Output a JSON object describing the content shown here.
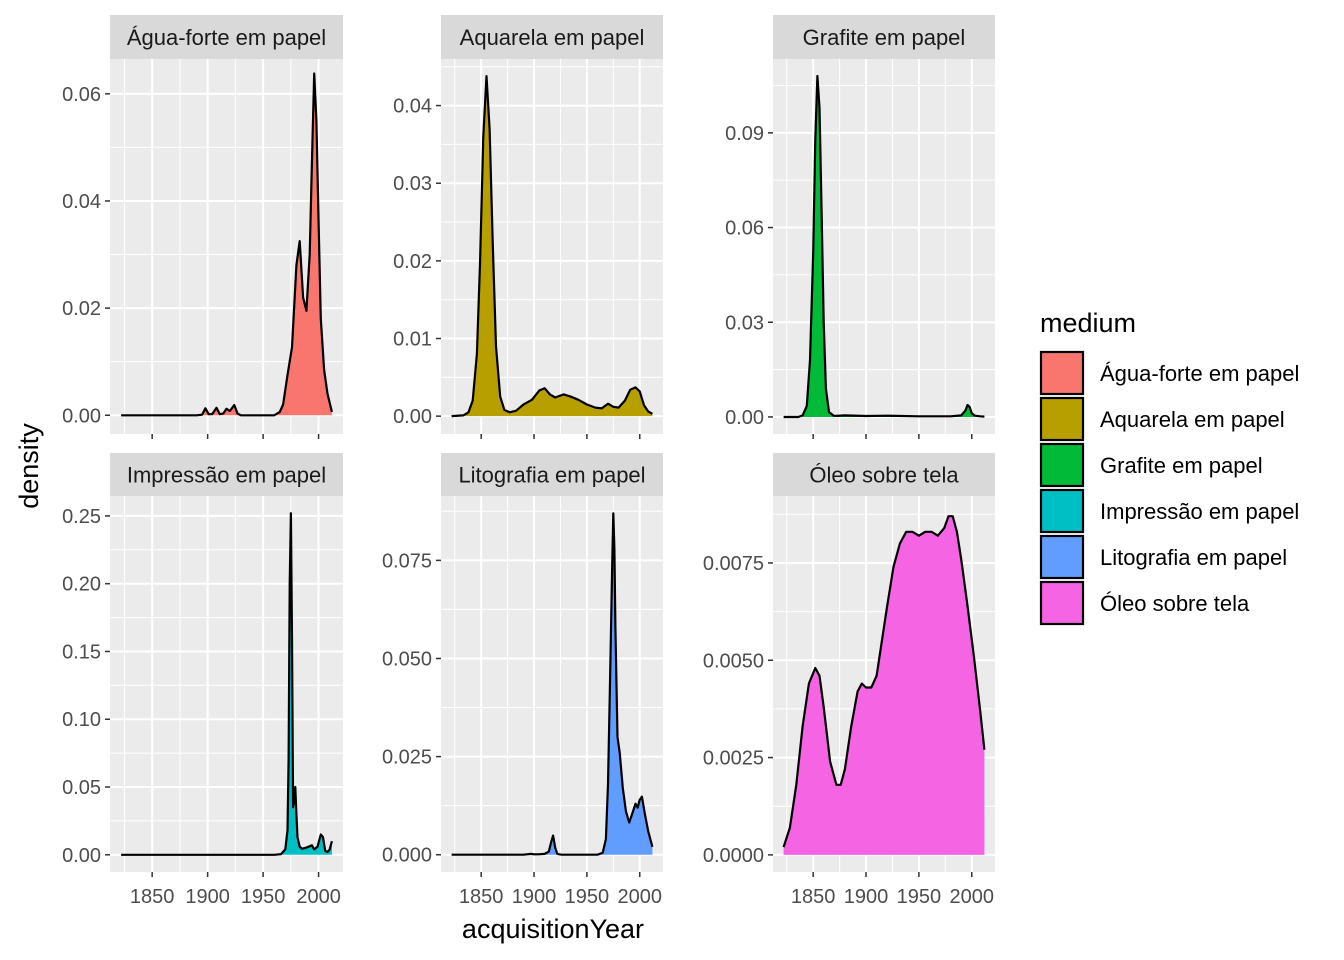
{
  "chart_data": {
    "type": "area",
    "xlabel": "acquisitionYear",
    "ylabel": "density",
    "legend": {
      "title": "medium",
      "position": "right",
      "entries": [
        {
          "label": "Água-forte em papel",
          "color": "#F8766D"
        },
        {
          "label": "Aquarela em papel",
          "color": "#B79F00"
        },
        {
          "label": "Grafite em papel",
          "color": "#00BA38"
        },
        {
          "label": "Impressão em papel",
          "color": "#00BFC4"
        },
        {
          "label": "Litografia em papel",
          "color": "#619CFF"
        },
        {
          "label": "Óleo sobre tela",
          "color": "#F564E3"
        }
      ]
    },
    "grid": true,
    "panels": [
      {
        "title": "Água-forte em papel",
        "color": "#F8766D",
        "ylim": [
          -0.0035,
          0.0665
        ],
        "yticks": [
          0,
          0.02,
          0.04,
          0.06
        ],
        "ytick_labels": [
          "0.00",
          "0.02",
          "0.04",
          "0.06"
        ],
        "x": [
          1822,
          1890,
          1895,
          1898,
          1901,
          1904,
          1908,
          1911,
          1914,
          1917,
          1920,
          1924,
          1927,
          1930,
          1945,
          1960,
          1965,
          1968,
          1972,
          1976,
          1980,
          1983,
          1986,
          1989,
          1992,
          1994,
          1996,
          1998,
          2000,
          2002,
          2005,
          2008,
          2012
        ],
        "y": [
          0,
          0,
          0.0001,
          0.0013,
          0.0002,
          0.0002,
          0.0014,
          0.0002,
          0.0003,
          0.0012,
          0.0008,
          0.0019,
          0.0003,
          0,
          0,
          0,
          0.0006,
          0.002,
          0.0075,
          0.0127,
          0.028,
          0.0325,
          0.022,
          0.0195,
          0.03,
          0.047,
          0.0638,
          0.055,
          0.036,
          0.018,
          0.0085,
          0.004,
          0.0006
        ]
      },
      {
        "title": "Aquarela em papel",
        "color": "#B79F00",
        "ylim": [
          -0.0023,
          0.046
        ],
        "yticks": [
          0,
          0.01,
          0.02,
          0.03,
          0.04
        ],
        "ytick_labels": [
          "0.00",
          "0.01",
          "0.02",
          "0.03",
          "0.04"
        ],
        "x": [
          1822,
          1833,
          1838,
          1842,
          1846,
          1849,
          1852,
          1855,
          1858,
          1861,
          1864,
          1868,
          1872,
          1877,
          1883,
          1890,
          1898,
          1905,
          1910,
          1915,
          1920,
          1928,
          1935,
          1942,
          1950,
          1958,
          1964,
          1970,
          1975,
          1980,
          1986,
          1991,
          1996,
          2000,
          2004,
          2008,
          2012
        ],
        "y": [
          0,
          0.0001,
          0.0005,
          0.002,
          0.008,
          0.02,
          0.036,
          0.0438,
          0.037,
          0.022,
          0.009,
          0.0025,
          0.0008,
          0.0005,
          0.0007,
          0.0015,
          0.0021,
          0.0033,
          0.0036,
          0.0028,
          0.0024,
          0.0028,
          0.0025,
          0.0021,
          0.0015,
          0.0011,
          0.001,
          0.0016,
          0.0012,
          0.0011,
          0.002,
          0.0034,
          0.0037,
          0.0032,
          0.0014,
          0.0006,
          0.0003
        ]
      },
      {
        "title": "Grafite em papel",
        "color": "#00BA38",
        "ylim": [
          -0.0054,
          0.1134
        ],
        "yticks": [
          0,
          0.03,
          0.06,
          0.09
        ],
        "ytick_labels": [
          "0.00",
          "0.03",
          "0.06",
          "0.09"
        ],
        "x": [
          1822,
          1836,
          1840,
          1844,
          1847,
          1850,
          1852,
          1854,
          1856,
          1858,
          1860,
          1862,
          1865,
          1870,
          1880,
          1900,
          1920,
          1950,
          1980,
          1990,
          1994,
          1996,
          1998,
          2000,
          2003,
          2008,
          2012
        ],
        "y": [
          0,
          0,
          0.0005,
          0.0035,
          0.018,
          0.052,
          0.088,
          0.108,
          0.098,
          0.065,
          0.03,
          0.009,
          0.0015,
          0.0003,
          0.0005,
          0.0003,
          0.0004,
          0.0002,
          0.0002,
          0.0005,
          0.002,
          0.0038,
          0.0032,
          0.0012,
          0.0004,
          0.0002,
          0.0001
        ]
      },
      {
        "title": "Impressão em papel",
        "color": "#00BFC4",
        "ylim": [
          -0.0127,
          0.2647
        ],
        "yticks": [
          0,
          0.05,
          0.1,
          0.15,
          0.2,
          0.25
        ],
        "ytick_labels": [
          "0.00",
          "0.05",
          "0.10",
          "0.15",
          "0.20",
          "0.25"
        ],
        "x": [
          1822,
          1960,
          1966,
          1970,
          1972,
          1973,
          1974,
          1975,
          1976,
          1977,
          1978,
          1979,
          1980,
          1981,
          1983,
          1985,
          1988,
          1991,
          1994,
          1996,
          1999,
          2002,
          2004,
          2006,
          2008,
          2010,
          2012
        ],
        "y": [
          0,
          0,
          0.0004,
          0.004,
          0.018,
          0.07,
          0.2,
          0.252,
          0.16,
          0.035,
          0.04,
          0.05,
          0.03,
          0.013,
          0.006,
          0.0045,
          0.005,
          0.006,
          0.007,
          0.004,
          0.006,
          0.015,
          0.013,
          0.003,
          0.002,
          0.004,
          0.01
        ]
      },
      {
        "title": "Litografia em papel",
        "color": "#619CFF",
        "ylim": [
          -0.0044,
          0.0914
        ],
        "yticks": [
          0,
          0.025,
          0.05,
          0.075
        ],
        "ytick_labels": [
          "0.000",
          "0.025",
          "0.050",
          "0.075"
        ],
        "x": [
          1822,
          1890,
          1897,
          1900,
          1904,
          1910,
          1914,
          1916,
          1918,
          1920,
          1922,
          1926,
          1935,
          1950,
          1960,
          1965,
          1968,
          1970,
          1972,
          1974,
          1975,
          1976,
          1977,
          1979,
          1981,
          1984,
          1987,
          1990,
          1993,
          1996,
          1998,
          2000,
          2002,
          2005,
          2008,
          2012
        ],
        "y": [
          0,
          0,
          0.0002,
          0.0001,
          0.0001,
          0.0002,
          0.0008,
          0.003,
          0.0049,
          0.0018,
          0.0002,
          0,
          0,
          0,
          0,
          0.0005,
          0.004,
          0.018,
          0.045,
          0.075,
          0.087,
          0.078,
          0.058,
          0.03,
          0.026,
          0.017,
          0.011,
          0.0082,
          0.0105,
          0.013,
          0.012,
          0.014,
          0.0148,
          0.0102,
          0.006,
          0.002
        ]
      },
      {
        "title": "Óleo sobre tela",
        "color": "#F564E3",
        "ylim": [
          -0.00044,
          0.00922
        ],
        "yticks": [
          0,
          0.0025,
          0.005,
          0.0075
        ],
        "ytick_labels": [
          "0.0000",
          "0.0025",
          "0.0050",
          "0.0075"
        ],
        "x": [
          1822,
          1828,
          1834,
          1840,
          1846,
          1852,
          1856,
          1860,
          1866,
          1872,
          1876,
          1880,
          1886,
          1892,
          1896,
          1900,
          1905,
          1910,
          1915,
          1920,
          1926,
          1932,
          1938,
          1944,
          1950,
          1956,
          1962,
          1968,
          1974,
          1978,
          1982,
          1986,
          1990,
          1996,
          2002,
          2008,
          2012
        ],
        "y": [
          0.0002,
          0.0007,
          0.0018,
          0.0033,
          0.0044,
          0.0048,
          0.0046,
          0.0038,
          0.0024,
          0.0018,
          0.0018,
          0.0022,
          0.0033,
          0.0042,
          0.0044,
          0.0043,
          0.0043,
          0.0046,
          0.0055,
          0.0064,
          0.0074,
          0.008,
          0.0083,
          0.0083,
          0.0082,
          0.0083,
          0.0083,
          0.0082,
          0.0084,
          0.0087,
          0.0087,
          0.0083,
          0.0076,
          0.0064,
          0.0051,
          0.0037,
          0.0027
        ]
      }
    ],
    "xlim": [
      1812,
      2022
    ],
    "xticks": [
      1850,
      1900,
      1950,
      2000
    ],
    "xtick_labels": [
      "1850",
      "1900",
      "1950",
      "2000"
    ]
  }
}
